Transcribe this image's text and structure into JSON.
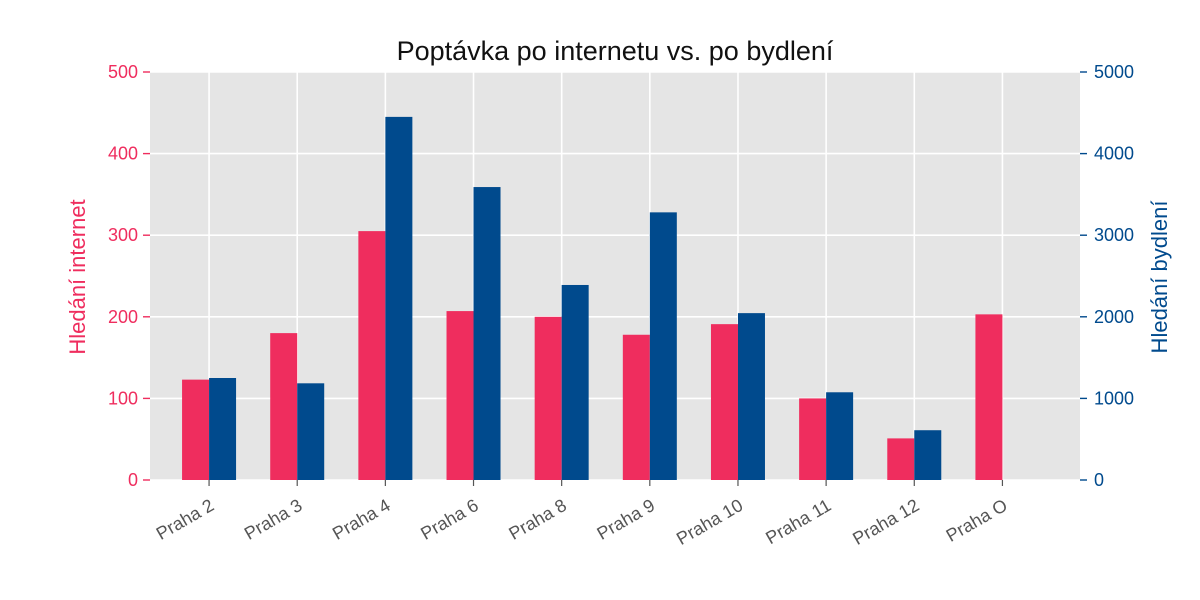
{
  "chart_data": {
    "type": "bar",
    "title": "Poptávka po internetu vs. po bydlení",
    "categories": [
      "Praha 2",
      "Praha 3",
      "Praha 4",
      "Praha 6",
      "Praha 8",
      "Praha 9",
      "Praha 10",
      "Praha 11",
      "Praha 12",
      "Praha O"
    ],
    "series": [
      {
        "name": "Hledání internet",
        "axis": "left",
        "color": "#EF2D5E",
        "values": [
          123,
          180,
          305,
          207,
          200,
          178,
          191,
          100,
          51,
          203
        ]
      },
      {
        "name": "Hledání bydlení",
        "axis": "right",
        "color": "#004A8D",
        "values": [
          1250,
          1185,
          4450,
          3590,
          2390,
          3280,
          2045,
          1075,
          610,
          null
        ]
      }
    ],
    "ylabel_left": "Hledání internet",
    "ylabel_right": "Hledání bydlení",
    "ylim_left": [
      0,
      500
    ],
    "ylim_right": [
      0,
      5000
    ],
    "yticks_left": [
      "0",
      "100",
      "200",
      "300",
      "400",
      "500"
    ],
    "yticks_right": [
      "0",
      "1000",
      "2000",
      "3000",
      "4000",
      "5000"
    ],
    "grid": true,
    "background": "#E5E5E5",
    "left_axis_color": "#EF2D5E",
    "right_axis_color": "#004A8D"
  }
}
